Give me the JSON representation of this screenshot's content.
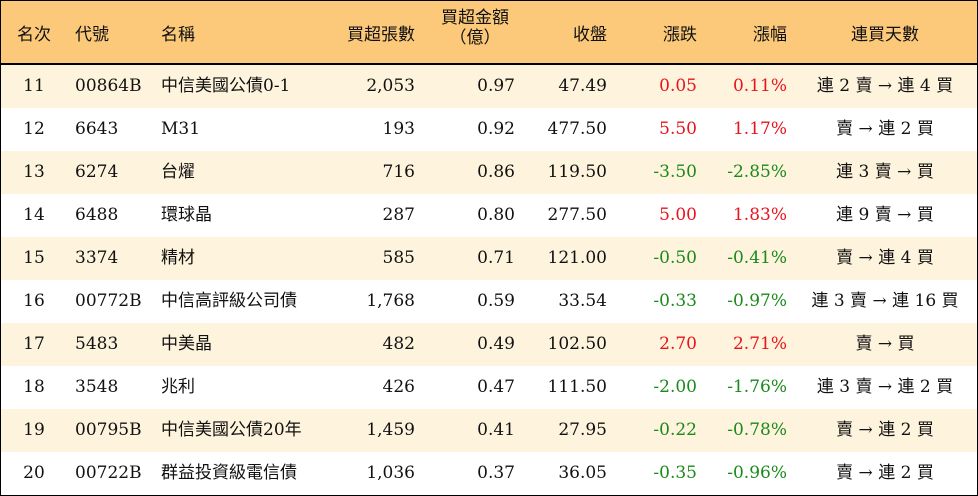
{
  "colors": {
    "header_bg": "#fbc979",
    "row_odd_bg": "#fef3dc",
    "row_even_bg": "#ffffff",
    "up": "#e8131d",
    "down": "#1a8a1a"
  },
  "headers": {
    "rank": "名次",
    "code": "代號",
    "name": "名稱",
    "net_buy_lots": "買超張數",
    "net_buy_amount_line1": "買超金額",
    "net_buy_amount_line2": "（億）",
    "close": "收盤",
    "change": "漲跌",
    "change_pct": "漲幅",
    "streak": "連買天數"
  },
  "rows": [
    {
      "rank": "11",
      "code": "00864B",
      "name": "中信美國公債0-1",
      "lots": "2,053",
      "amount": "0.97",
      "close": "47.49",
      "change": "0.05",
      "pct": "0.11%",
      "streak": "連 2 賣 → 連 4 買",
      "dir": "up"
    },
    {
      "rank": "12",
      "code": "6643",
      "name": "M31",
      "lots": "193",
      "amount": "0.92",
      "close": "477.50",
      "change": "5.50",
      "pct": "1.17%",
      "streak": "賣 → 連 2 買",
      "dir": "up"
    },
    {
      "rank": "13",
      "code": "6274",
      "name": "台燿",
      "lots": "716",
      "amount": "0.86",
      "close": "119.50",
      "change": "-3.50",
      "pct": "-2.85%",
      "streak": "連 3 賣 → 買",
      "dir": "down"
    },
    {
      "rank": "14",
      "code": "6488",
      "name": "環球晶",
      "lots": "287",
      "amount": "0.80",
      "close": "277.50",
      "change": "5.00",
      "pct": "1.83%",
      "streak": "連 9 賣 → 買",
      "dir": "up"
    },
    {
      "rank": "15",
      "code": "3374",
      "name": "精材",
      "lots": "585",
      "amount": "0.71",
      "close": "121.00",
      "change": "-0.50",
      "pct": "-0.41%",
      "streak": "賣 → 連 4 買",
      "dir": "down"
    },
    {
      "rank": "16",
      "code": "00772B",
      "name": "中信高評級公司債",
      "lots": "1,768",
      "amount": "0.59",
      "close": "33.54",
      "change": "-0.33",
      "pct": "-0.97%",
      "streak": "連 3 賣 → 連 16 買",
      "dir": "down"
    },
    {
      "rank": "17",
      "code": "5483",
      "name": "中美晶",
      "lots": "482",
      "amount": "0.49",
      "close": "102.50",
      "change": "2.70",
      "pct": "2.71%",
      "streak": "賣 → 買",
      "dir": "up"
    },
    {
      "rank": "18",
      "code": "3548",
      "name": "兆利",
      "lots": "426",
      "amount": "0.47",
      "close": "111.50",
      "change": "-2.00",
      "pct": "-1.76%",
      "streak": "連 3 賣 → 連 2 買",
      "dir": "down"
    },
    {
      "rank": "19",
      "code": "00795B",
      "name": "中信美國公債20年",
      "lots": "1,459",
      "amount": "0.41",
      "close": "27.95",
      "change": "-0.22",
      "pct": "-0.78%",
      "streak": "賣 → 連 2 買",
      "dir": "down"
    },
    {
      "rank": "20",
      "code": "00722B",
      "name": "群益投資級電信債",
      "lots": "1,036",
      "amount": "0.37",
      "close": "36.05",
      "change": "-0.35",
      "pct": "-0.96%",
      "streak": "賣 → 連 2 買",
      "dir": "down"
    }
  ]
}
